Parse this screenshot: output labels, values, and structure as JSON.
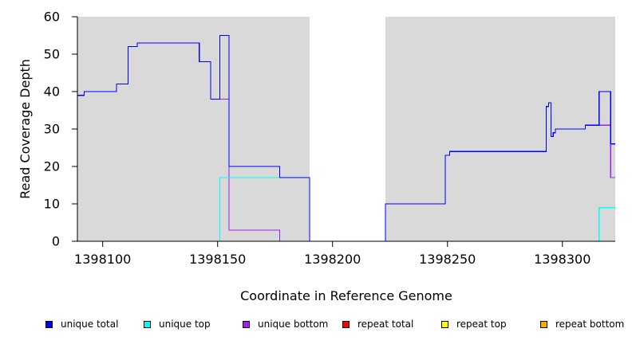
{
  "chart_data": {
    "type": "line",
    "title": "",
    "xlabel": "Coordinate in Reference Genome",
    "ylabel": "Read Coverage Depth",
    "xlim": [
      1398089,
      1398323
    ],
    "ylim": [
      0,
      60
    ],
    "xticks": [
      1398100,
      1398150,
      1398200,
      1398250,
      1398300
    ],
    "xtick_labels": [
      "1398100",
      "1398150",
      "1398200",
      "1398250",
      "1398300"
    ],
    "yticks": [
      0,
      10,
      20,
      30,
      40,
      50,
      60
    ],
    "ytick_labels": [
      "0",
      "10",
      "20",
      "30",
      "40",
      "50",
      "60"
    ],
    "grid": false,
    "legend_position": "bottom",
    "background_color": "#d9d9d9",
    "gap_region": [
      1398190,
      1398223
    ],
    "gap_color": "#ffffff",
    "series": [
      {
        "name": "unique total",
        "color": "#0000ff",
        "steps": [
          [
            1398089,
            39
          ],
          [
            1398092,
            40
          ],
          [
            1398106,
            42
          ],
          [
            1398111,
            52
          ],
          [
            1398115,
            53
          ],
          [
            1398142,
            48
          ],
          [
            1398147,
            38
          ],
          [
            1398151,
            55
          ],
          [
            1398155,
            20
          ],
          [
            1398177,
            17
          ],
          [
            1398190,
            0
          ],
          [
            1398223,
            10
          ],
          [
            1398249,
            23
          ],
          [
            1398251,
            24
          ],
          [
            1398293,
            36
          ],
          [
            1398294,
            37
          ],
          [
            1398295,
            28
          ],
          [
            1398296,
            29
          ],
          [
            1398297,
            30
          ],
          [
            1398310,
            31
          ],
          [
            1398316,
            40
          ],
          [
            1398321,
            26
          ],
          [
            1398323,
            26
          ]
        ]
      },
      {
        "name": "unique top",
        "color": "#00ffff",
        "steps": [
          [
            1398089,
            0
          ],
          [
            1398151,
            17
          ],
          [
            1398190,
            0
          ],
          [
            1398316,
            9
          ],
          [
            1398323,
            9
          ]
        ]
      },
      {
        "name": "unique bottom",
        "color": "#a020f0",
        "steps": [
          [
            1398089,
            39
          ],
          [
            1398092,
            40
          ],
          [
            1398106,
            42
          ],
          [
            1398111,
            52
          ],
          [
            1398115,
            53
          ],
          [
            1398142,
            48
          ],
          [
            1398147,
            38
          ],
          [
            1398155,
            3
          ],
          [
            1398177,
            0
          ],
          [
            1398223,
            10
          ],
          [
            1398249,
            23
          ],
          [
            1398251,
            24
          ],
          [
            1398293,
            36
          ],
          [
            1398294,
            37
          ],
          [
            1398295,
            28
          ],
          [
            1398296,
            29
          ],
          [
            1398297,
            30
          ],
          [
            1398310,
            31
          ],
          [
            1398321,
            17
          ],
          [
            1398323,
            17
          ]
        ]
      },
      {
        "name": "repeat total",
        "color": "#ff0000",
        "steps": [
          [
            1398089,
            0
          ],
          [
            1398323,
            0
          ]
        ]
      },
      {
        "name": "repeat top",
        "color": "#ffff00",
        "steps": [
          [
            1398089,
            0
          ],
          [
            1398323,
            0
          ]
        ]
      },
      {
        "name": "repeat bottom",
        "color": "#ffa500",
        "steps": [
          [
            1398089,
            0
          ],
          [
            1398323,
            0
          ]
        ]
      }
    ]
  },
  "legend": {
    "items": [
      {
        "label": "unique total",
        "color": "#0000ff"
      },
      {
        "label": "unique top",
        "color": "#00ffff"
      },
      {
        "label": "unique bottom",
        "color": "#a020f0"
      },
      {
        "label": "repeat total",
        "color": "#ff0000"
      },
      {
        "label": "repeat top",
        "color": "#ffff00"
      },
      {
        "label": "repeat bottom",
        "color": "#ffa500"
      }
    ]
  }
}
